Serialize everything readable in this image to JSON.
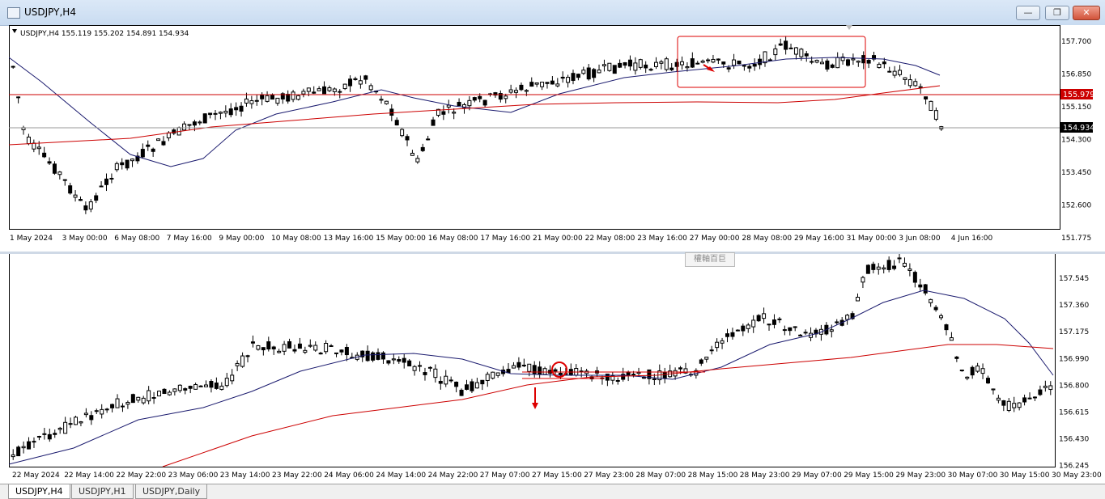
{
  "window": {
    "title": "USDJPY,H4",
    "minimize_glyph": "—",
    "restore_glyph": "❐",
    "close_glyph": "✕"
  },
  "top_chart": {
    "header": "USDJPY,H4  155.119 155.202 154.891 154.934",
    "price_labels": [
      "157.700",
      "156.850",
      "155.150",
      "154.300",
      "153.450",
      "152.600",
      "151.775"
    ],
    "red_line_label": "155.979",
    "current_price_label": "154.934",
    "time_labels": [
      "1 May 2024",
      "3 May 00:00",
      "6 May 08:00",
      "7 May 16:00",
      "9 May 00:00",
      "10 May 08:00",
      "13 May 16:00",
      "15 May 00:00",
      "16 May 08:00",
      "17 May 16:00",
      "21 May 00:00",
      "22 May 08:00",
      "23 May 16:00",
      "27 May 00:00",
      "28 May 08:00",
      "29 May 16:00",
      "31 May 00:00",
      "3 Jun 08:00",
      "4 Jun 16:00"
    ]
  },
  "bottom_chart": {
    "price_labels": [
      "157.545",
      "157.360",
      "157.175",
      "156.990",
      "156.800",
      "156.615",
      "156.430",
      "156.245"
    ],
    "time_labels": [
      "22 May 2024",
      "22 May 14:00",
      "22 May 22:00",
      "23 May 06:00",
      "23 May 14:00",
      "23 May 22:00",
      "24 May 06:00",
      "24 May 14:00",
      "24 May 22:00",
      "27 May 07:00",
      "27 May 15:00",
      "27 May 23:00",
      "28 May 07:00",
      "28 May 15:00",
      "28 May 23:00",
      "29 May 07:00",
      "29 May 15:00",
      "29 May 23:00",
      "30 May 07:00",
      "30 May 15:00",
      "30 May 23:00"
    ]
  },
  "tooltip": "權軸百巨",
  "tabs": [
    "USDJPY,H4",
    "USDJPY,H1",
    "USDJPY,Daily"
  ],
  "colors": {
    "bear": "#000000",
    "bull": "#ffffff",
    "ma_fast": "#1a1a6e",
    "ma_slow": "#cc0000",
    "hline": "#cc0000",
    "annotation": "#dd0000"
  }
}
